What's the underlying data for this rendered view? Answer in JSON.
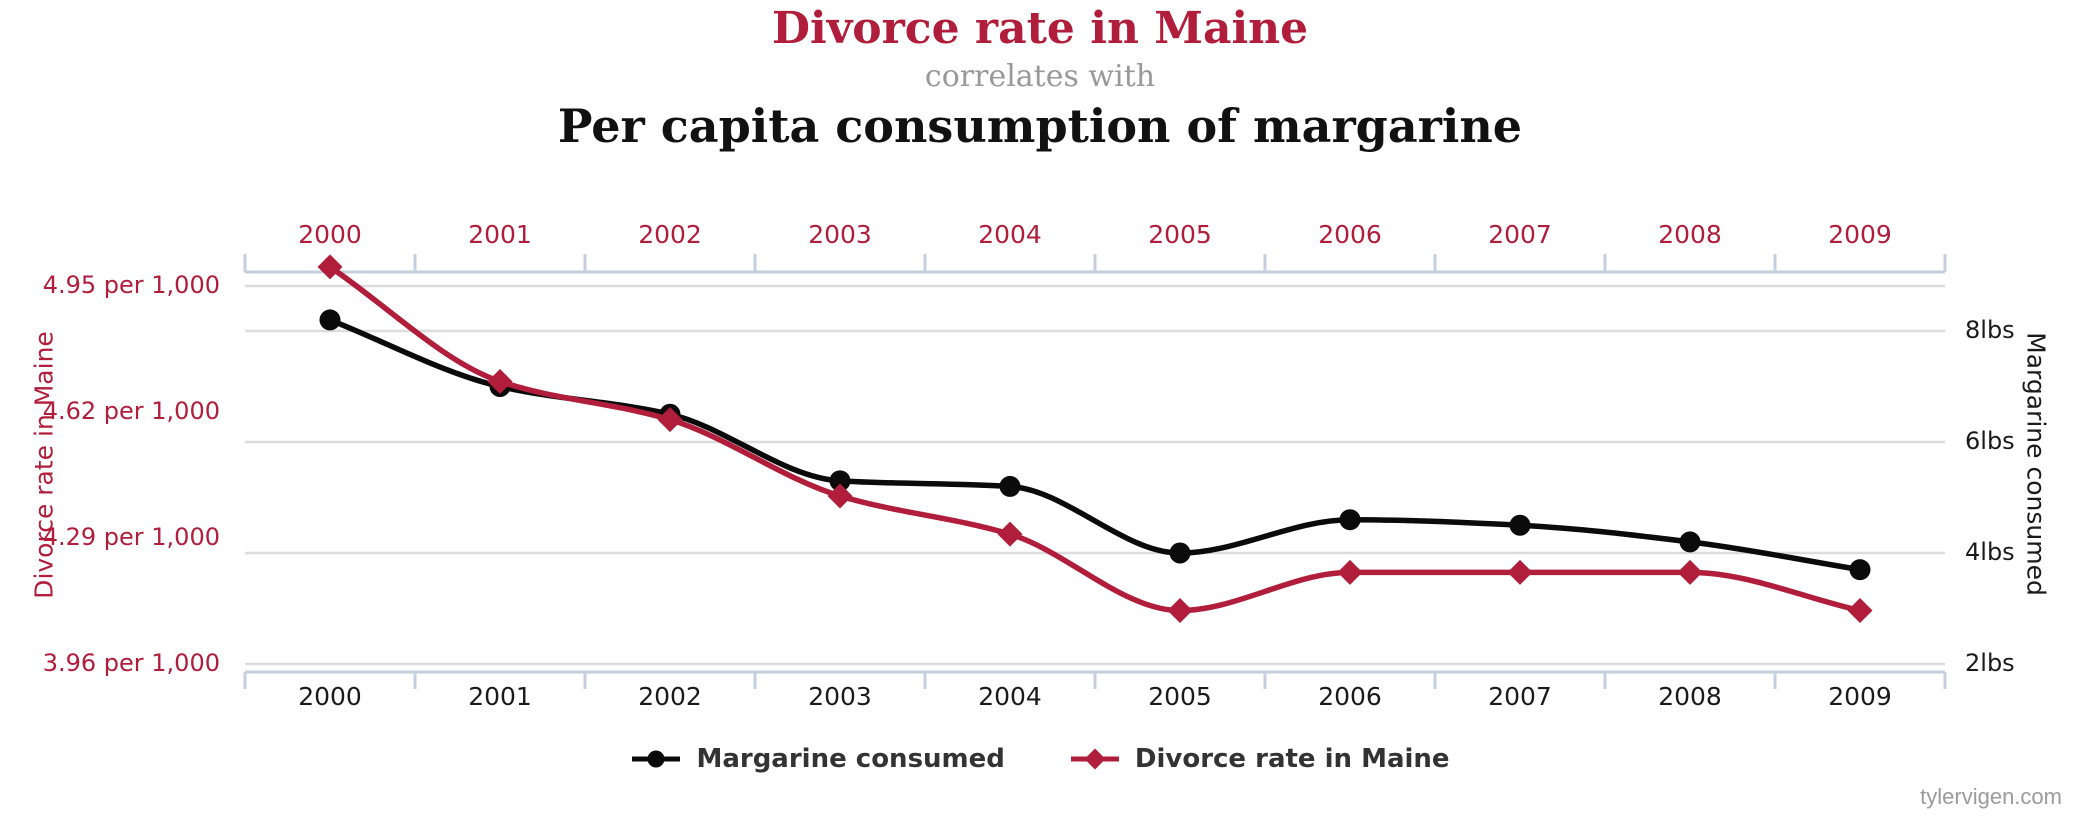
{
  "header": {
    "title_1": "Divorce rate in Maine",
    "connector": "correlates with",
    "title_2": "Per capita consumption of margarine"
  },
  "axes": {
    "left_title": "Divorce rate in Maine",
    "right_title": "Margarine consumed",
    "left_ticks": [
      {
        "label": "4.95 per 1,000",
        "value": 4.95
      },
      {
        "label": "4.62 per 1,000",
        "value": 4.62
      },
      {
        "label": "4.29 per 1,000",
        "value": 4.29
      },
      {
        "label": "3.96 per 1,000",
        "value": 3.96
      }
    ],
    "right_ticks": [
      {
        "label": "8lbs",
        "value": 8
      },
      {
        "label": "6lbs",
        "value": 6
      },
      {
        "label": "4lbs",
        "value": 4
      },
      {
        "label": "2lbs",
        "value": 2
      }
    ]
  },
  "legend": {
    "items": [
      {
        "label": "Margarine consumed",
        "color": "#0b0b0b",
        "marker": "circle"
      },
      {
        "label": "Divorce rate in Maine",
        "color": "#b01e3c",
        "marker": "diamond"
      }
    ]
  },
  "watermark": "tylervigen.com",
  "colors": {
    "accent_red": "#b01e3c",
    "series_black": "#0b0b0b",
    "gridline": "#dcdcdc",
    "axis_line": "#c6cfdd",
    "connector_gray": "#999999",
    "tick_label_dark": "#1a1a1a",
    "legend_text": "#333333",
    "watermark_gray": "#9b9b9b"
  },
  "chart_data": {
    "type": "line",
    "title": "Divorce rate in Maine correlates with Per capita consumption of margarine",
    "curve": "monotone",
    "grid": true,
    "legend_position": "bottom",
    "x": [
      2000,
      2001,
      2002,
      2003,
      2004,
      2005,
      2006,
      2007,
      2008,
      2009
    ],
    "series": [
      {
        "name": "Margarine consumed",
        "axis": "right",
        "unit": "lbs",
        "color": "#0b0b0b",
        "marker": "circle",
        "values": [
          8.2,
          7.0,
          6.5,
          5.3,
          5.2,
          4.0,
          4.6,
          4.5,
          4.2,
          3.7
        ]
      },
      {
        "name": "Divorce rate in Maine",
        "axis": "left",
        "unit": "per 1,000",
        "color": "#b01e3c",
        "marker": "diamond",
        "values": [
          5.0,
          4.7,
          4.6,
          4.4,
          4.3,
          4.1,
          4.2,
          4.2,
          4.2,
          4.1
        ]
      }
    ],
    "left_axis": {
      "title": "Divorce rate in Maine",
      "tick_values": [
        4.95,
        4.62,
        4.29,
        3.96
      ],
      "range": [
        3.96,
        4.95
      ]
    },
    "right_axis": {
      "title": "Margarine consumed",
      "tick_values": [
        8,
        6,
        4,
        2
      ],
      "range": [
        2,
        8
      ]
    },
    "gridlines": {
      "left_values": [
        4.95
      ],
      "right_values": [
        8,
        6,
        4,
        2
      ]
    }
  }
}
